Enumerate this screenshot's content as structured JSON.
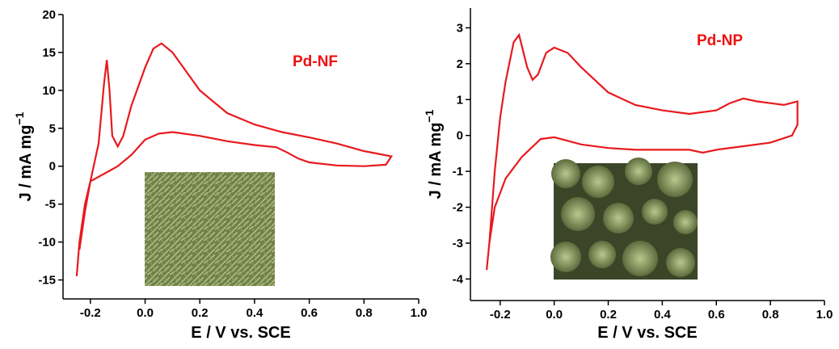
{
  "chart_data": [
    {
      "type": "line",
      "annotation": "Pd-NF",
      "annotation_color": "#ee1111",
      "x_label": "E / V vs. SCE",
      "y_label": "J / mA mg",
      "y_label_exponent": "−1",
      "xlim": [
        -0.3,
        1.0
      ],
      "ylim": [
        -17.5,
        20
      ],
      "xticks": [
        -0.2,
        {
          "value": 0,
          "label": "0.0"
        },
        0.2,
        0.4,
        0.6,
        0.8,
        {
          "value": 1,
          "label": "1.0"
        }
      ],
      "yticks": [
        -15,
        -10,
        -5,
        0,
        5,
        10,
        15,
        20
      ],
      "x": [
        -0.25,
        -0.24,
        -0.22,
        -0.2,
        -0.15,
        -0.1,
        -0.05,
        0,
        0.05,
        0.1,
        0.2,
        0.3,
        0.4,
        0.48,
        0.52,
        0.56,
        0.6,
        0.7,
        0.8,
        0.88,
        0.9,
        0.8,
        0.7,
        0.6,
        0.5,
        0.4,
        0.3,
        0.2,
        0.15,
        0.1,
        0.06,
        0.03,
        0,
        -0.05,
        -0.08,
        -0.1,
        -0.12,
        -0.13,
        -0.14,
        -0.15,
        -0.17,
        -0.2,
        -0.22,
        -0.24
      ],
      "series": [
        {
          "color": "#e8191e",
          "values": [
            -14.5,
            -10,
            -5,
            -2,
            -1,
            0,
            1.5,
            3.5,
            4.3,
            4.5,
            4,
            3.3,
            2.8,
            2.5,
            1.8,
            1,
            0.5,
            0.1,
            0,
            0.2,
            1.3,
            2,
            3,
            3.8,
            4.5,
            5.5,
            7,
            10,
            12.5,
            15,
            16.2,
            15.5,
            13,
            8,
            4,
            2.6,
            4,
            10,
            14,
            11,
            3,
            -2,
            -6,
            -11
          ]
        }
      ]
    },
    {
      "type": "line",
      "annotation": "Pd-NP",
      "annotation_color": "#ee1111",
      "x_label": "E / V vs. SCE",
      "y_label": "J / mA mg",
      "y_label_exponent": "−1",
      "xlim": [
        -0.31,
        1.0
      ],
      "ylim": [
        -4.6,
        3.55
      ],
      "xticks": [
        -0.2,
        {
          "value": 0,
          "label": "0.0"
        },
        0.2,
        0.4,
        0.6,
        0.8,
        {
          "value": 1,
          "label": "1.0"
        }
      ],
      "yticks": [
        -4,
        -3,
        -2,
        -1,
        0,
        1,
        2,
        3
      ],
      "x": [
        -0.25,
        -0.24,
        -0.22,
        -0.18,
        -0.12,
        -0.05,
        0,
        0.05,
        0.1,
        0.2,
        0.3,
        0.4,
        0.5,
        0.55,
        0.6,
        0.7,
        0.8,
        0.88,
        0.9,
        0.9,
        0.85,
        0.8,
        0.75,
        0.7,
        0.65,
        0.6,
        0.5,
        0.4,
        0.3,
        0.2,
        0.1,
        0.05,
        0,
        -0.03,
        -0.06,
        -0.08,
        -0.1,
        -0.13,
        -0.15,
        -0.18,
        -0.2,
        -0.22,
        -0.24
      ],
      "series": [
        {
          "color": "#e8191e",
          "values": [
            -3.75,
            -3,
            -2,
            -1.2,
            -0.6,
            -0.1,
            -0.05,
            -0.15,
            -0.25,
            -0.35,
            -0.4,
            -0.4,
            -0.4,
            -0.48,
            -0.4,
            -0.3,
            -0.2,
            0,
            0.3,
            0.95,
            0.85,
            0.9,
            0.95,
            1.03,
            0.9,
            0.7,
            0.6,
            0.7,
            0.85,
            1.2,
            1.9,
            2.3,
            2.45,
            2.3,
            1.7,
            1.55,
            1.9,
            2.8,
            2.6,
            1.5,
            0.5,
            -1,
            -3
          ]
        }
      ]
    }
  ]
}
